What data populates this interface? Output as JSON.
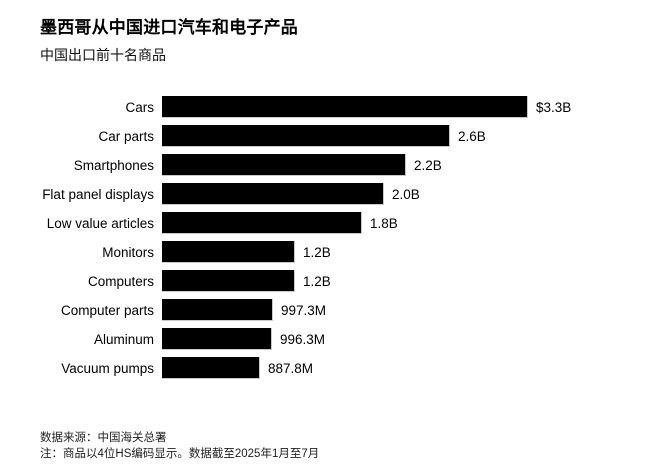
{
  "header": {
    "title": "墨西哥从中国进口汽车和电子产品",
    "subtitle": "中国出口前十名商品"
  },
  "chart_data": {
    "type": "bar",
    "orientation": "horizontal",
    "title": "墨西哥从中国进口汽车和电子产品",
    "subtitle": "中国出口前十名商品",
    "categories": [
      "Cars",
      "Car parts",
      "Smartphones",
      "Flat panel displays",
      "Low value articles",
      "Monitors",
      "Computers",
      "Computer parts",
      "Aluminum",
      "Vacuum pumps"
    ],
    "values_usd_billions": [
      3.3,
      2.6,
      2.2,
      2.0,
      1.8,
      1.2,
      1.2,
      0.9973,
      0.9963,
      0.8878
    ],
    "value_labels": [
      "$3.3B",
      "2.6B",
      "2.2B",
      "2.0B",
      "1.8B",
      "1.2B",
      "1.2B",
      "997.3M",
      "996.3M",
      "887.8M"
    ],
    "xlim": [
      0,
      3.3
    ],
    "grid": false,
    "legend": "none",
    "bar_color": "#000000",
    "background_color": "#ffffff"
  },
  "footer": {
    "source": "数据来源：中国海关总署",
    "note": "注：商品以4位HS编码显示。数据截至2025年1月至7月"
  }
}
